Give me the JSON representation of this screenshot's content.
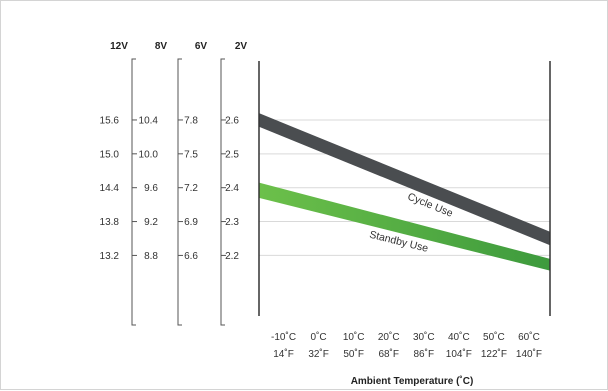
{
  "chart_data": {
    "type": "area",
    "title": "",
    "xlabel": "Ambient Temperature (˚C)",
    "ylabel": "",
    "x_celsius": [
      -10,
      0,
      10,
      20,
      30,
      40,
      50,
      60
    ],
    "xlim": [
      -17,
      66
    ],
    "x_ticks_c": [
      "-10˚C",
      "0˚C",
      "10˚C",
      "20˚C",
      "30˚C",
      "40˚C",
      "50˚C",
      "60˚C"
    ],
    "x_ticks_f": [
      "14˚F",
      "32˚F",
      "50˚F",
      "68˚F",
      "86˚F",
      "104˚F",
      "122˚F",
      "140˚F"
    ],
    "ylim_2v": [
      2.03,
      2.78
    ],
    "voltage_axes": [
      {
        "header": "12V",
        "ticks": [
          "15.6",
          "15.0",
          "14.4",
          "13.8",
          "13.2"
        ]
      },
      {
        "header": "8V",
        "ticks": [
          "10.4",
          "10.0",
          "9.6",
          "9.2",
          "8.8"
        ]
      },
      {
        "header": "6V",
        "ticks": [
          "7.8",
          "7.5",
          "7.2",
          "6.9",
          "6.6"
        ]
      },
      {
        "header": "2V",
        "ticks": [
          "2.6",
          "2.5",
          "2.4",
          "2.3",
          "2.2"
        ]
      }
    ],
    "tick_values_2v": [
      2.6,
      2.5,
      2.4,
      2.3,
      2.2
    ],
    "series": [
      {
        "name": "Cycle Use",
        "color": "#4a4d50",
        "x": [
          -17,
          66
        ],
        "upper": [
          2.62,
          2.27
        ],
        "lower": [
          2.58,
          2.23
        ]
      },
      {
        "name": "Standby Use",
        "color": "#3d9a3d",
        "color_light": "#6cc04a",
        "x": [
          -17,
          66
        ],
        "upper": [
          2.415,
          2.19
        ],
        "lower": [
          2.37,
          2.155
        ]
      }
    ],
    "grid": true,
    "grid_color": "#d9d9d9"
  }
}
